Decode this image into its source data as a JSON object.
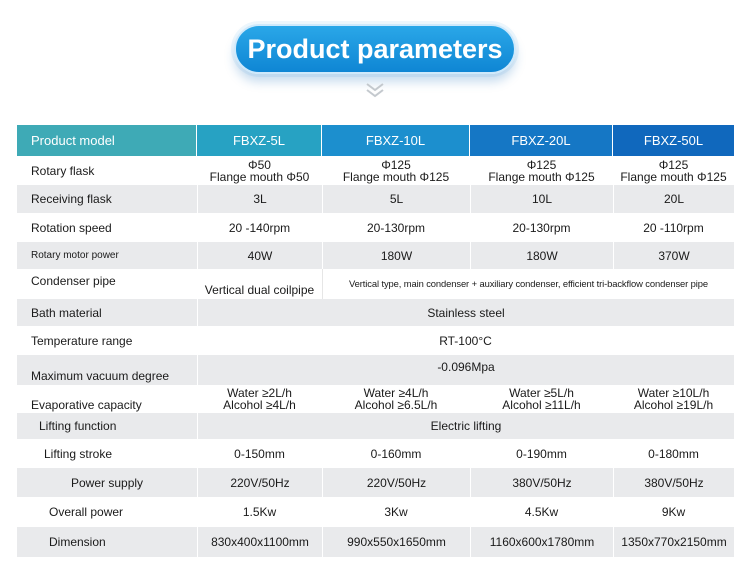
{
  "title": "Product parameters",
  "table": {
    "header": [
      "Product model",
      "FBXZ-5L",
      "FBXZ-10L",
      "FBXZ-20L",
      "FBXZ-50L"
    ],
    "rows": {
      "rotary_flask": {
        "label": "Rotary flask",
        "values": [
          [
            "Φ50",
            "Flange mouth Φ50"
          ],
          [
            "Φ125",
            "Flange mouth Φ125"
          ],
          [
            "Φ125",
            "Flange mouth Φ125"
          ],
          [
            "Φ125",
            "Flange mouth Φ125"
          ]
        ]
      },
      "receiving_flask": {
        "label": "Receiving flask",
        "values": [
          "3L",
          "5L",
          "10L",
          "20L"
        ]
      },
      "rotation_speed": {
        "label": "Rotation speed",
        "values": [
          "20 -140rpm",
          "20-130rpm",
          "20-130rpm",
          "20 -110rpm"
        ]
      },
      "motor_power": {
        "label": "Rotary motor power",
        "values": [
          "40W",
          "180W",
          "180W",
          "370W"
        ]
      },
      "condenser_pipe": {
        "label": "Condenser pipe",
        "first": "Vertical dual coilpipe",
        "rest": "Vertical type, main condenser + auxiliary condenser, efficient tri-backflow condenser pipe"
      },
      "bath_material": {
        "label": "Bath material",
        "value": "Stainless steel"
      },
      "temperature_range": {
        "label": "Temperature range",
        "value": "RT-100°C"
      },
      "vacuum_degree": {
        "label": "Maximum vacuum degree",
        "value": "-0.096Mpa"
      },
      "evaporative_capacity": {
        "label": "Evaporative capacity",
        "values": [
          [
            "Water ≥2L/h",
            "Alcohol ≥4L/h"
          ],
          [
            "Water ≥4L/h",
            "Alcohol ≥6.5L/h"
          ],
          [
            "Water ≥5L/h",
            "Alcohol ≥11L/h"
          ],
          [
            "Water ≥10L/h",
            "Alcohol ≥19L/h"
          ]
        ]
      },
      "lifting_function": {
        "label": "Lifting function",
        "value": "Electric lifting"
      },
      "lifting_stroke": {
        "label": "Lifting stroke",
        "values": [
          "0-150mm",
          "0-160mm",
          "0-190mm",
          "0-180mm"
        ]
      },
      "power_supply": {
        "label": "Power supply",
        "values": [
          "220V/50Hz",
          "220V/50Hz",
          "380V/50Hz",
          "380V/50Hz"
        ]
      },
      "overall_power": {
        "label": "Overall power",
        "values": [
          "1.5Kw",
          "3Kw",
          "4.5Kw",
          "9Kw"
        ]
      },
      "dimension": {
        "label": "Dimension",
        "values": [
          "830x400x1100mm",
          "990x550x1650mm",
          "1160x600x1780mm",
          "1350x770x2150mm"
        ]
      }
    }
  },
  "colors": {
    "title_blue": "#1a93dc",
    "header_teal": "#3eaab6",
    "header_blue": "#1068bd",
    "row_shade": "#e9eaec"
  }
}
